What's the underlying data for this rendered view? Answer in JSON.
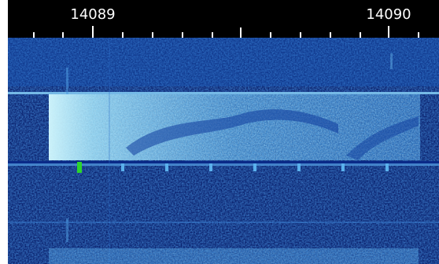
{
  "frequency_scale": {
    "labels": [
      "14089",
      "14090"
    ]
  },
  "colors": {
    "scale_background": "#000000",
    "scale_text": "#ffffff",
    "waterfall_background": "#02082a",
    "noise_low": "#0a1f7a",
    "noise_high": "#1e64c8",
    "signal": "#b6f2ff",
    "marker": "#2bd62b"
  }
}
